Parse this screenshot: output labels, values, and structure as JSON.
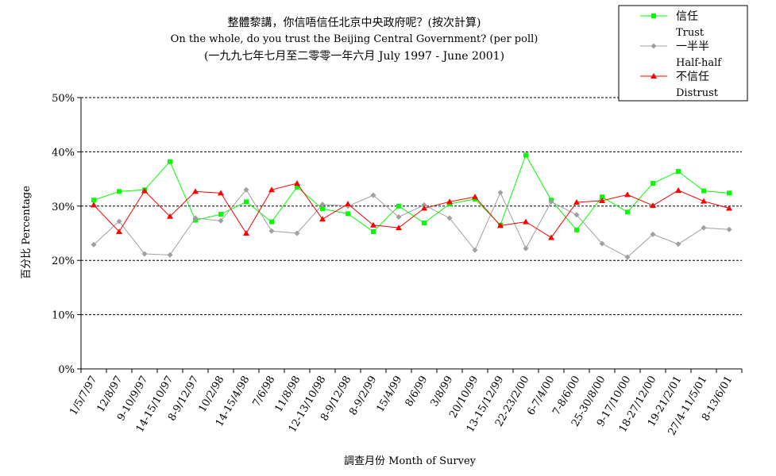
{
  "chart_data": {
    "type": "line",
    "title": "整體黎講，你信唔信任北京中央政府呢？(按次計算)",
    "subtitle": "On the whole, do you trust the Beijing Central Government?  (per poll)",
    "subtitle2": "(一九九七年七月至二零零一年六月 July 1997 -  June 2001)",
    "xlabel": "調查月份 Month of Survey",
    "ylabel": "百分比 Percentage",
    "ylim": [
      0,
      50
    ],
    "yticks": [
      "0%",
      "10%",
      "20%",
      "30%",
      "40%",
      "50%"
    ],
    "grid": "horizontal dashed",
    "legend_position": "top-right",
    "categories": [
      "1/5/7/97",
      "12/8/97",
      "9-10/9/97",
      "14-15/10/97",
      "8-9/12/97",
      "10/2/98",
      "14-15/4/98",
      "7/6/98",
      "11/8/98",
      "12-13/10/98",
      "8-9/12/98",
      "8-9/2/99",
      "15/4/99",
      "8/6/99",
      "3/8/99",
      "20/10/99",
      "13-15/12/99",
      "22-23/2/00",
      "6-7/4/00",
      "7-8/6/00",
      "25-30/8/00",
      "9-17/10/00",
      "18-27/12/00",
      "19-21/2/01",
      "27/4-11/5/01",
      "8-13/6/01"
    ],
    "series": [
      {
        "name": "信任",
        "name_en": "Trust",
        "color": "#00ff00",
        "marker": "square",
        "values": [
          31.1,
          32.7,
          33.0,
          38.2,
          27.4,
          28.5,
          30.8,
          27.1,
          33.5,
          29.5,
          28.6,
          25.3,
          30.0,
          26.9,
          30.4,
          31.3,
          26.5,
          39.4,
          31.1,
          25.6,
          31.7,
          28.9,
          34.2,
          36.4,
          32.8,
          32.4
        ]
      },
      {
        "name": "一半半",
        "name_en": "Half-half",
        "color": "#a0a0a0",
        "marker": "diamond",
        "values": [
          22.9,
          27.2,
          21.2,
          21.0,
          27.8,
          27.3,
          33.0,
          25.4,
          25.0,
          30.3,
          30.0,
          32.0,
          28.0,
          30.2,
          27.8,
          21.9,
          32.5,
          22.2,
          30.8,
          28.4,
          23.1,
          20.6,
          24.8,
          23.0,
          26.0,
          25.7
        ]
      },
      {
        "name": "不信任",
        "name_en": "Distrust",
        "color": "#ff0000",
        "marker": "triangle",
        "values": [
          30.2,
          25.3,
          32.8,
          28.1,
          32.7,
          32.4,
          25.0,
          33.0,
          34.2,
          27.6,
          30.4,
          26.5,
          26.0,
          29.6,
          30.8,
          31.7,
          26.4,
          27.1,
          24.2,
          30.7,
          31.0,
          32.1,
          30.1,
          32.9,
          30.9,
          29.6
        ]
      }
    ]
  }
}
